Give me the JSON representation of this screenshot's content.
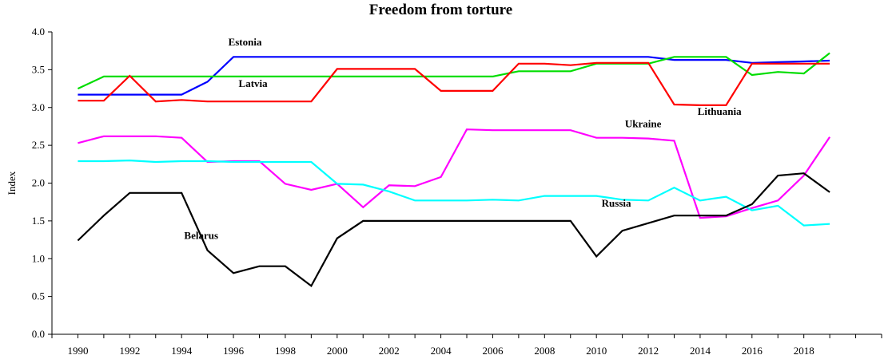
{
  "chart_data": {
    "type": "line",
    "title": "Freedom from torture",
    "ylabel": "Index",
    "xlabel": "",
    "xlim": [
      1989,
      2021
    ],
    "ylim": [
      0,
      4
    ],
    "y_ticks": [
      "0.0",
      "0.5",
      "1.0",
      "1.5",
      "2.0",
      "2.5",
      "3.0",
      "3.5",
      "4.0"
    ],
    "x_ticks": [
      "1990",
      "1992",
      "1994",
      "1996",
      "1998",
      "2000",
      "2002",
      "2004",
      "2006",
      "2008",
      "2010",
      "2012",
      "2014",
      "2016",
      "2018"
    ],
    "grid": false,
    "legend": "inline labels",
    "series": [
      {
        "name": "Estonia",
        "color": "#0000ff",
        "x": [
          1990,
          1991,
          1992,
          1993,
          1994,
          1995,
          1996,
          1997,
          1998,
          1999,
          2000,
          2001,
          2002,
          2003,
          2004,
          2005,
          2006,
          2007,
          2008,
          2009,
          2010,
          2011,
          2012,
          2013,
          2014,
          2015,
          2016,
          2017,
          2018,
          2019
        ],
        "y": [
          3.17,
          3.17,
          3.17,
          3.17,
          3.17,
          3.34,
          3.67,
          3.67,
          3.67,
          3.67,
          3.67,
          3.67,
          3.67,
          3.67,
          3.67,
          3.67,
          3.67,
          3.67,
          3.67,
          3.67,
          3.67,
          3.67,
          3.67,
          3.63,
          3.63,
          3.63,
          3.59,
          3.6,
          3.61,
          3.62
        ]
      },
      {
        "name": "Latvia",
        "color": "#00dd00",
        "x": [
          1990,
          1991,
          1992,
          1993,
          1994,
          1995,
          1996,
          1997,
          1998,
          1999,
          2000,
          2001,
          2002,
          2003,
          2004,
          2005,
          2006,
          2007,
          2008,
          2009,
          2010,
          2011,
          2012,
          2013,
          2014,
          2015,
          2016,
          2017,
          2018,
          2019
        ],
        "y": [
          3.25,
          3.41,
          3.41,
          3.41,
          3.41,
          3.41,
          3.41,
          3.41,
          3.41,
          3.41,
          3.41,
          3.41,
          3.41,
          3.41,
          3.41,
          3.41,
          3.41,
          3.48,
          3.48,
          3.48,
          3.58,
          3.58,
          3.58,
          3.67,
          3.67,
          3.67,
          3.43,
          3.47,
          3.45,
          3.72
        ]
      },
      {
        "name": "Lithuania",
        "color": "#ff0000",
        "x": [
          1990,
          1991,
          1992,
          1993,
          1994,
          1995,
          1996,
          1997,
          1998,
          1999,
          2000,
          2001,
          2002,
          2003,
          2004,
          2005,
          2006,
          2007,
          2008,
          2009,
          2010,
          2011,
          2012,
          2013,
          2014,
          2015,
          2016,
          2017,
          2018,
          2019
        ],
        "y": [
          3.09,
          3.09,
          3.42,
          3.08,
          3.1,
          3.08,
          3.08,
          3.08,
          3.08,
          3.08,
          3.51,
          3.51,
          3.51,
          3.51,
          3.22,
          3.22,
          3.22,
          3.58,
          3.58,
          3.56,
          3.59,
          3.59,
          3.59,
          3.04,
          3.03,
          3.03,
          3.58,
          3.58,
          3.58,
          3.58
        ]
      },
      {
        "name": "Ukraine",
        "color": "#ff00ff",
        "x": [
          1990,
          1991,
          1992,
          1993,
          1994,
          1995,
          1996,
          1997,
          1998,
          1999,
          2000,
          2001,
          2002,
          2003,
          2004,
          2005,
          2006,
          2007,
          2008,
          2009,
          2010,
          2011,
          2012,
          2013,
          2014,
          2015,
          2016,
          2017,
          2018,
          2019
        ],
        "y": [
          2.53,
          2.62,
          2.62,
          2.62,
          2.6,
          2.28,
          2.29,
          2.29,
          1.99,
          1.91,
          1.99,
          1.68,
          1.97,
          1.96,
          2.08,
          2.71,
          2.7,
          2.7,
          2.7,
          2.7,
          2.6,
          2.6,
          2.59,
          2.56,
          1.54,
          1.56,
          1.67,
          1.77,
          2.1,
          2.61
        ]
      },
      {
        "name": "Russia",
        "color": "#00ffff",
        "x": [
          1990,
          1991,
          1992,
          1993,
          1994,
          1995,
          1996,
          1997,
          1998,
          1999,
          2000,
          2001,
          2002,
          2003,
          2004,
          2005,
          2006,
          2007,
          2008,
          2009,
          2010,
          2011,
          2012,
          2013,
          2014,
          2015,
          2016,
          2017,
          2018,
          2019
        ],
        "y": [
          2.29,
          2.29,
          2.3,
          2.28,
          2.29,
          2.29,
          2.28,
          2.28,
          2.28,
          2.28,
          1.99,
          1.98,
          1.89,
          1.77,
          1.77,
          1.77,
          1.78,
          1.77,
          1.83,
          1.83,
          1.83,
          1.78,
          1.77,
          1.94,
          1.77,
          1.82,
          1.64,
          1.7,
          1.44,
          1.46
        ]
      },
      {
        "name": "Belarus",
        "color": "#000000",
        "x": [
          1990,
          1991,
          1992,
          1993,
          1994,
          1995,
          1996,
          1997,
          1998,
          1999,
          2000,
          2001,
          2002,
          2003,
          2004,
          2005,
          2006,
          2007,
          2008,
          2009,
          2010,
          2011,
          2012,
          2013,
          2014,
          2015,
          2016,
          2017,
          2018,
          2019
        ],
        "y": [
          1.24,
          1.57,
          1.87,
          1.87,
          1.87,
          1.11,
          0.81,
          0.9,
          0.9,
          0.64,
          1.27,
          1.5,
          1.5,
          1.5,
          1.5,
          1.5,
          1.5,
          1.5,
          1.5,
          1.5,
          1.03,
          1.37,
          1.47,
          1.57,
          1.57,
          1.57,
          1.72,
          2.1,
          2.13,
          1.88
        ]
      }
    ],
    "annotations": [
      {
        "text": "Estonia",
        "x": 1995.8,
        "y": 3.82
      },
      {
        "text": "Latvia",
        "x": 1996.2,
        "y": 3.27
      },
      {
        "text": "Lithuania",
        "x": 2013.9,
        "y": 2.9
      },
      {
        "text": "Ukraine",
        "x": 2011.1,
        "y": 2.74
      },
      {
        "text": "Russia",
        "x": 2010.2,
        "y": 1.69
      },
      {
        "text": "Belarus",
        "x": 1994.1,
        "y": 1.26
      }
    ]
  }
}
